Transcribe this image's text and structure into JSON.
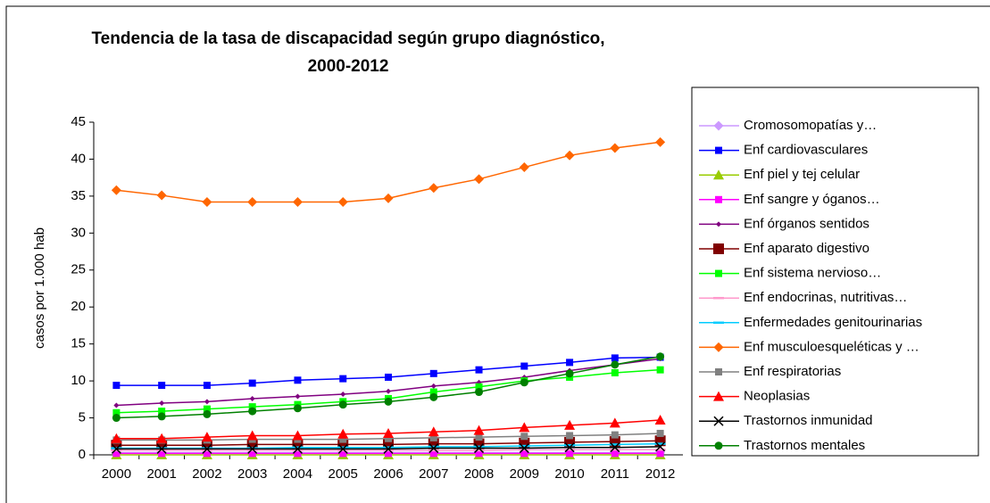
{
  "chart_data": {
    "type": "line",
    "title": [
      "Tendencia de la tasa de discapacidad según grupo diagnóstico,",
      "2000-2012"
    ],
    "y_label": "casos por 1.000 hab",
    "categories": [
      "2000",
      "2001",
      "2002",
      "2003",
      "2004",
      "2005",
      "2006",
      "2007",
      "2008",
      "2009",
      "2010",
      "2011",
      "2012"
    ],
    "ylim": [
      0,
      45
    ],
    "yticks": [
      0,
      5,
      10,
      15,
      20,
      25,
      30,
      35,
      40,
      45
    ],
    "legend": "right",
    "series": [
      {
        "name": "Cromosomopatías y…",
        "color": "#cc99ff",
        "marker": "diamond",
        "values": [
          0.3,
          0.3,
          0.3,
          0.3,
          0.3,
          0.3,
          0.3,
          0.3,
          0.3,
          0.3,
          0.3,
          0.3,
          0.3
        ]
      },
      {
        "name": "Enf cardiovasculares",
        "color": "#0000ff",
        "marker": "square",
        "values": [
          9.4,
          9.4,
          9.4,
          9.7,
          10.1,
          10.3,
          10.5,
          11.0,
          11.5,
          12.0,
          12.5,
          13.1,
          13.2
        ]
      },
      {
        "name": "Enf piel y tej celular",
        "color": "#99cc00",
        "marker": "triangle",
        "values": [
          0,
          0,
          0,
          0,
          0,
          0,
          0,
          0,
          0,
          0,
          0,
          0,
          0
        ]
      },
      {
        "name": "Enf sangre y óganos…",
        "color": "#ff00ff",
        "marker": "square",
        "values": [
          0.2,
          0.2,
          0.2,
          0.2,
          0.2,
          0.2,
          0.2,
          0.2,
          0.2,
          0.2,
          0.2,
          0.2,
          0.2
        ]
      },
      {
        "name": "Enf órganos sentidos",
        "color": "#800080",
        "marker": "smalldiamond",
        "values": [
          6.7,
          7.0,
          7.2,
          7.6,
          7.9,
          8.2,
          8.6,
          9.3,
          9.8,
          10.5,
          11.4,
          12.2,
          13.0
        ]
      },
      {
        "name": "Enf aparato digestivo",
        "color": "#800000",
        "marker": "bigsquare",
        "values": [
          1.3,
          1.3,
          1.3,
          1.4,
          1.4,
          1.4,
          1.4,
          1.5,
          1.5,
          1.6,
          1.7,
          1.8,
          1.9
        ]
      },
      {
        "name": "Enf sistema nervioso…",
        "color": "#00ff00",
        "marker": "square",
        "values": [
          5.7,
          5.9,
          6.2,
          6.5,
          6.8,
          7.2,
          7.6,
          8.5,
          9.2,
          10.0,
          10.5,
          11.1,
          11.5
        ]
      },
      {
        "name": "Enf endocrinas, nutritivas…",
        "color": "#ff99cc",
        "marker": "dash",
        "values": [
          0.6,
          0.6,
          0.6,
          0.6,
          0.6,
          0.6,
          0.6,
          0.6,
          0.6,
          0.7,
          0.7,
          0.7,
          0.7
        ]
      },
      {
        "name": "Enfermedades genitourinarias",
        "color": "#00ccff",
        "marker": "dash",
        "values": [
          0.9,
          0.9,
          0.9,
          0.9,
          1.0,
          1.0,
          1.0,
          1.1,
          1.1,
          1.2,
          1.3,
          1.4,
          1.5
        ]
      },
      {
        "name": "Enf musculoesqueléticas y …",
        "color": "#ff6600",
        "marker": "diamond",
        "values": [
          35.8,
          35.1,
          34.2,
          34.2,
          34.2,
          34.2,
          34.7,
          36.1,
          37.3,
          38.9,
          40.5,
          41.5,
          42.3
        ]
      },
      {
        "name": "Enf respiratorias",
        "color": "#808080",
        "marker": "square",
        "values": [
          2.0,
          2.0,
          2.0,
          2.1,
          2.1,
          2.1,
          2.2,
          2.3,
          2.4,
          2.5,
          2.6,
          2.7,
          2.9
        ]
      },
      {
        "name": "Neoplasias",
        "color": "#ff0000",
        "marker": "triangle",
        "values": [
          2.2,
          2.2,
          2.4,
          2.6,
          2.6,
          2.8,
          2.9,
          3.1,
          3.3,
          3.7,
          4.0,
          4.3,
          4.7
        ]
      },
      {
        "name": "Trastornos inmunidad",
        "color": "#000000",
        "marker": "x",
        "values": [
          0.8,
          0.8,
          0.8,
          0.8,
          0.8,
          0.8,
          0.8,
          0.9,
          0.9,
          0.9,
          1.0,
          1.0,
          1.1
        ]
      },
      {
        "name": "Trastornos mentales",
        "color": "#008000",
        "marker": "circle",
        "values": [
          5.0,
          5.2,
          5.5,
          5.9,
          6.3,
          6.8,
          7.2,
          7.8,
          8.5,
          9.8,
          11.0,
          12.2,
          13.3
        ]
      }
    ]
  }
}
